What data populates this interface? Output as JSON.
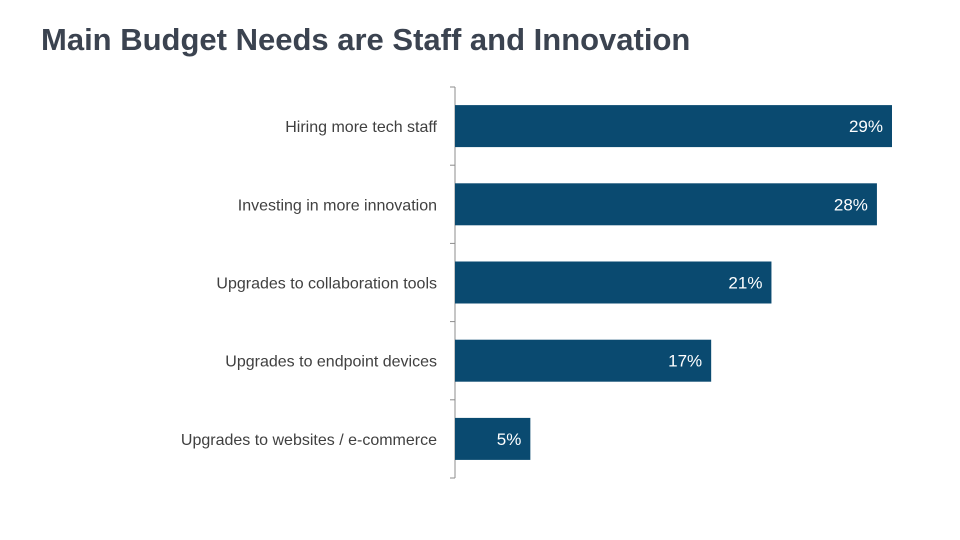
{
  "slide": {
    "title": "Main Budget Needs are Staff and Innovation"
  },
  "chart_data": {
    "type": "bar",
    "orientation": "horizontal",
    "title": "Main Budget Needs are Staff and Innovation",
    "categories": [
      "Hiring more tech staff",
      "Investing in more innovation",
      "Upgrades to collaboration tools",
      "Upgrades to endpoint devices",
      "Upgrades to websites / e-commerce"
    ],
    "values": [
      29,
      28,
      21,
      17,
      5
    ],
    "value_labels": [
      "29%",
      "28%",
      "21%",
      "17%",
      "5%"
    ],
    "unit": "%",
    "xlim": [
      0,
      29
    ],
    "xlabel": "",
    "ylabel": "",
    "grid": false,
    "legend": "none",
    "bar_color": "#0a4a70",
    "label_color": "#ffffff",
    "title_color": "#3b4350"
  }
}
